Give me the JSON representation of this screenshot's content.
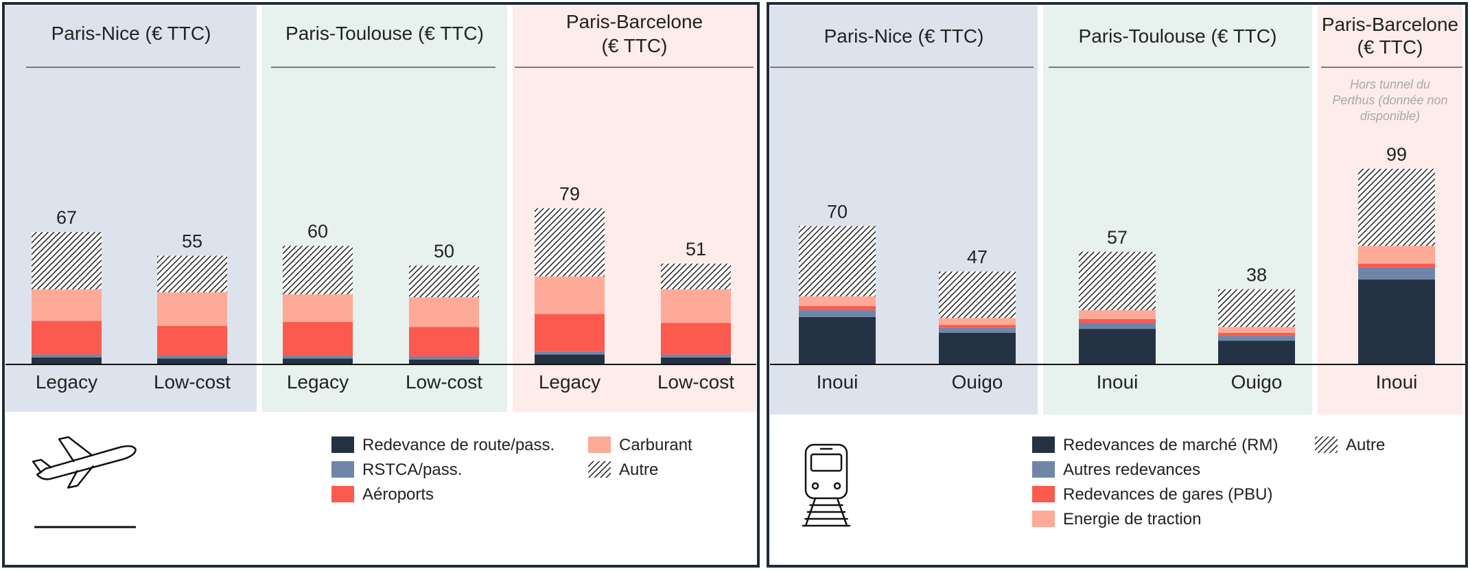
{
  "colors": {
    "panel_border": "#1f2a3a",
    "band_nice": "#dde3ed",
    "band_toulouse": "#e7f1ee",
    "band_barcelone": "#fdece9",
    "navy": "#253244",
    "steel": "#6f86a8",
    "red": "#fc5a4e",
    "salmon": "#fdaa98",
    "hatch": "#222222"
  },
  "chart_data": [
    {
      "type": "bar",
      "stacked": true,
      "mode": "air",
      "icon": "airplane-takeoff-icon",
      "groups": [
        {
          "title": "Paris-Nice (€ TTC)",
          "title_lines": [
            "Paris-Nice (€ TTC)"
          ]
        },
        {
          "title": "Paris-Toulouse (€ TTC)",
          "title_lines": [
            "Paris-Toulouse (€ TTC)"
          ]
        },
        {
          "title": "Paris-Barcelone (€ TTC)",
          "title_lines": [
            "Paris-Barcelone",
            "(€ TTC)"
          ]
        }
      ],
      "series": [
        {
          "name": "Redevance de route/pass.",
          "color": "#253244"
        },
        {
          "name": "RSTCA/pass.",
          "color": "#6f86a8"
        },
        {
          "name": "Aéroports",
          "color": "#fc5a4e"
        },
        {
          "name": "Carburant",
          "color": "#fdaa98"
        },
        {
          "name": "Autre",
          "color": "hatch"
        }
      ],
      "bars": [
        {
          "group": 0,
          "category": "Legacy",
          "total": "67",
          "values": [
            3.5,
            1.5,
            17,
            16,
            29
          ]
        },
        {
          "group": 0,
          "category": "Low-cost",
          "total": "55",
          "values": [
            3,
            1.5,
            15,
            17,
            18.5
          ]
        },
        {
          "group": 1,
          "category": "Legacy",
          "total": "60",
          "values": [
            3,
            1.5,
            17,
            14,
            24.5
          ]
        },
        {
          "group": 1,
          "category": "Low-cost",
          "total": "50",
          "values": [
            2.5,
            1.5,
            15,
            15,
            16
          ]
        },
        {
          "group": 2,
          "category": "Legacy",
          "total": "79",
          "values": [
            5,
            1.5,
            19,
            19,
            34.5
          ]
        },
        {
          "group": 2,
          "category": "Low-cost",
          "total": "51",
          "values": [
            3.5,
            1.5,
            16,
            17,
            13
          ]
        }
      ]
    },
    {
      "type": "bar",
      "stacked": true,
      "mode": "rail",
      "icon": "train-icon",
      "groups": [
        {
          "title": "Paris-Nice (€ TTC)",
          "title_lines": [
            "Paris-Nice (€ TTC)"
          ]
        },
        {
          "title": "Paris-Toulouse (€ TTC)",
          "title_lines": [
            "Paris-Toulouse (€ TTC)"
          ]
        },
        {
          "title": "Paris-Barcelone (€ TTC)",
          "title_lines": [
            "Paris-Barcelone",
            "(€ TTC)"
          ],
          "note_lines": [
            "Hors tunnel du",
            "Perthus (donnée non",
            "disponible)"
          ]
        }
      ],
      "series": [
        {
          "name": "Redevances de marché (RM)",
          "color": "#253244"
        },
        {
          "name": "Autres redevances",
          "color": "#6f86a8"
        },
        {
          "name": "Redevances de gares (PBU)",
          "color": "#fc5a4e"
        },
        {
          "name": "Energie de traction",
          "color": "#fdaa98"
        },
        {
          "name": "Autre",
          "color": "hatch"
        }
      ],
      "bars": [
        {
          "group": 0,
          "category": "Inoui",
          "total": "70",
          "values": [
            24,
            3.5,
            2,
            5,
            35.5
          ]
        },
        {
          "group": 0,
          "category": "Ouigo",
          "total": "47",
          "values": [
            16,
            2.5,
            1.5,
            3.5,
            23.5
          ]
        },
        {
          "group": 1,
          "category": "Inoui",
          "total": "57",
          "values": [
            18,
            3,
            2,
            4.5,
            29.5
          ]
        },
        {
          "group": 1,
          "category": "Ouigo",
          "total": "38",
          "values": [
            12,
            2.5,
            1.5,
            3,
            19
          ]
        },
        {
          "group": 2,
          "category": "Inoui",
          "total": "99",
          "values": [
            43,
            6,
            2,
            9,
            39
          ]
        }
      ]
    }
  ]
}
